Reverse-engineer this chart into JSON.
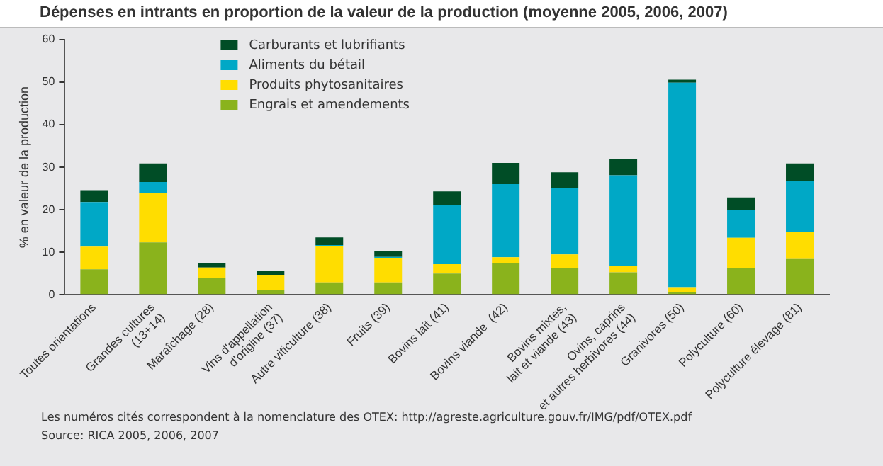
{
  "chart_data": {
    "type": "bar",
    "title": "Dépenses en intrants en proportion de la valeur de la production (moyenne 2005, 2006, 2007)",
    "ylabel": "% en valeur de la production",
    "categories": [
      "Toutes orientations",
      "Grandes cultures\n(13+14)",
      "Maraîchage (28)",
      "Vins d'appellation\nd'origine (37)",
      "Autre viticulture (38)",
      "Fruits (39)",
      "Bovins lait (41)",
      "Bovins viande  (42)",
      "Bovins mixtes,\nlait et viande (43)",
      "Ovins, caprins\net autres herbivores (44)",
      "Granivores (50)",
      "Polyculture (60)",
      "Polyculture élevage (81)"
    ],
    "stacked": true,
    "series": [
      {
        "name": "Engrais et amendements",
        "color": "#8ab31c",
        "values": [
          6.0,
          12.3,
          3.9,
          1.2,
          2.9,
          2.9,
          5.0,
          7.4,
          6.3,
          5.3,
          0.7,
          6.3,
          8.4
        ]
      },
      {
        "name": "Produits phytosanitaires",
        "color": "#ffdd00",
        "values": [
          5.3,
          11.7,
          2.5,
          3.5,
          8.5,
          5.7,
          2.2,
          1.4,
          3.2,
          1.4,
          1.1,
          7.1,
          6.4
        ]
      },
      {
        "name": "Aliments du bétail",
        "color": "#00a8c6",
        "values": [
          10.5,
          2.5,
          0,
          0,
          0.3,
          0.3,
          14.0,
          17.2,
          15.5,
          21.4,
          48.1,
          6.6,
          11.9
        ]
      },
      {
        "name": "Carburants et lubrifiants",
        "color": "#004d26",
        "values": [
          2.8,
          4.4,
          1.0,
          1.0,
          1.8,
          1.3,
          3.1,
          5.0,
          3.8,
          3.9,
          0.7,
          2.9,
          4.2
        ]
      }
    ],
    "ylim": [
      0,
      60
    ],
    "yticks": [
      0,
      10,
      20,
      30,
      40,
      50,
      60
    ],
    "grid": false,
    "legend": "top",
    "annotations": [
      "Les numéros cités correspondent à la nomenclature des OTEX: http://agreste.agriculture.gouv.fr/IMG/pdf/OTEX.pdf",
      "Source: RICA 2005, 2006, 2007"
    ]
  }
}
